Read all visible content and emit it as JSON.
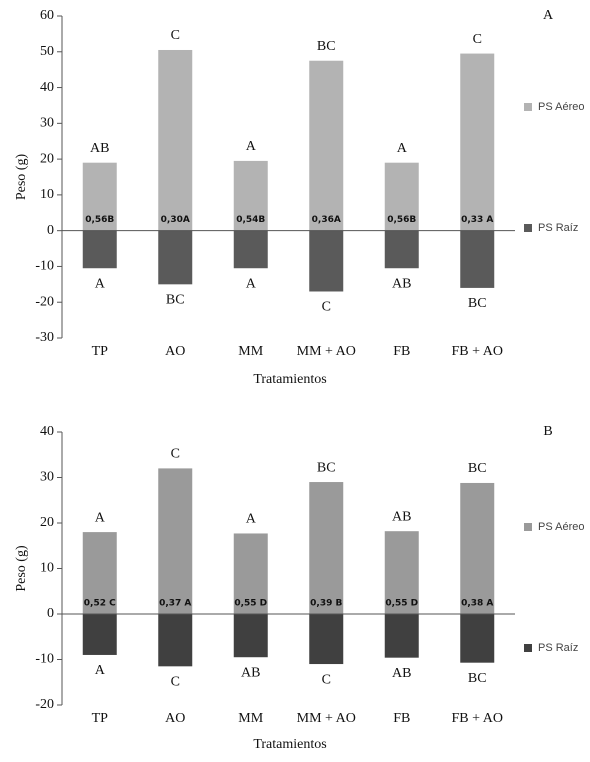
{
  "chart_data": [
    {
      "type": "bar",
      "panel_label": "A",
      "y_label": "Peso (g)",
      "x_label": "Tratamientos",
      "categories": [
        "TP",
        "AO",
        "MM",
        "MM + AO",
        "FB",
        "FB + AO"
      ],
      "ylim": [
        -30,
        60
      ],
      "yticks": [
        -30,
        -20,
        -10,
        0,
        10,
        20,
        30,
        40,
        50,
        60
      ],
      "series": [
        {
          "name": "PS Aéreo",
          "color": "#b3b3b3",
          "values": [
            19,
            50.5,
            19.5,
            47.5,
            19,
            49.5
          ],
          "letters": [
            "AB",
            "C",
            "A",
            "BC",
            "A",
            "C"
          ]
        },
        {
          "name": "PS Raíz",
          "color": "#5a5a5a",
          "values": [
            -10.5,
            -15,
            -10.5,
            -17,
            -10.5,
            -16
          ],
          "letters": [
            "A",
            "BC",
            "A",
            "C",
            "AB",
            "BC"
          ]
        }
      ],
      "ratio_labels": [
        "0,56B",
        "0,30A",
        "0,54B",
        "0,36A",
        "0,56B",
        "0,33 A"
      ]
    },
    {
      "type": "bar",
      "panel_label": "B",
      "y_label": "Peso (g)",
      "x_label": "Tratamientos",
      "categories": [
        "TP",
        "AO",
        "MM",
        "MM + AO",
        "FB",
        "FB + AO"
      ],
      "ylim": [
        -20,
        40
      ],
      "yticks": [
        -20,
        -10,
        0,
        10,
        20,
        30,
        40
      ],
      "series": [
        {
          "name": "PS Aéreo",
          "color": "#9a9a9a",
          "values": [
            18,
            32,
            17.7,
            29,
            18.2,
            28.8
          ],
          "letters": [
            "A",
            "C",
            "A",
            "BC",
            "AB",
            "BC"
          ]
        },
        {
          "name": "PS Raíz",
          "color": "#404040",
          "values": [
            -9,
            -11.5,
            -9.5,
            -11,
            -9.6,
            -10.7
          ],
          "letters": [
            "A",
            "C",
            "AB",
            "C",
            "AB",
            "BC"
          ]
        }
      ],
      "ratio_labels": [
        "0,52 C",
        "0,37 A",
        "0,55 D",
        "0,39 B",
        "0,55 D",
        "0,38 A"
      ]
    }
  ]
}
